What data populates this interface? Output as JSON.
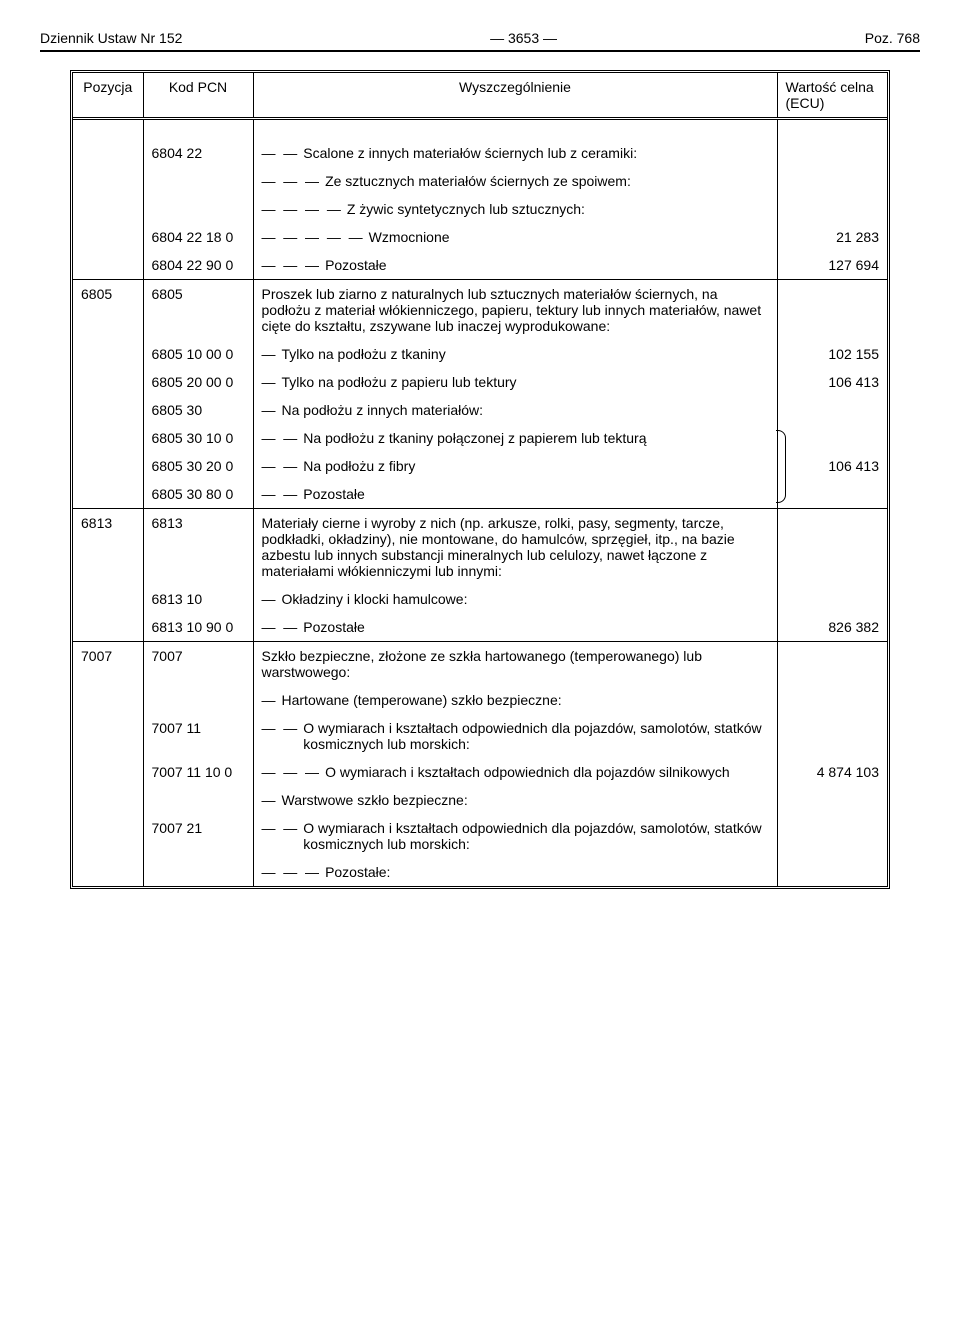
{
  "header": {
    "left": "Dziennik Ustaw Nr 152",
    "center": "—    3653    —",
    "right": "Poz. 768"
  },
  "columns": {
    "c1": "Pozycja",
    "c2": "Kod PCN",
    "c3": "Wyszczególnienie",
    "c4": "Wartość celna (ECU)"
  },
  "rows": [
    {
      "type": "spacer"
    },
    {
      "c2": "6804 22",
      "dash": "—  —",
      "text": "Scalone z innych materiałów ściernych lub z ceramiki:"
    },
    {
      "dash": "—  —  —",
      "text": "Ze sztucznych materiałów ściernych ze spoiwem:"
    },
    {
      "dash": "—  —  —  —",
      "text": "Z żywic syntetycznych lub sztucznych:"
    },
    {
      "c2": "6804 22 18 0",
      "dash": "—  —  —  —  —",
      "text": "Wzmocnione",
      "c4": "21 283"
    },
    {
      "c2": "6804 22 90 0",
      "dash": "—  —  —",
      "text": "Pozostałe",
      "c4": "127 694"
    },
    {
      "sep": true,
      "c1": "6805",
      "c2": "6805",
      "text": "Proszek lub ziarno z naturalnych lub sztucznych materiałów ściernych, na podłożu z materiał włókienniczego, papieru, tektury lub innych materiałów, nawet cięte do kształtu, zszywane lub inaczej wyprodukowane:"
    },
    {
      "c2": "6805 10 00 0",
      "dash": "—",
      "text": "Tylko na podłożu z tkaniny",
      "c4": "102 155"
    },
    {
      "c2": "6805 20 00 0",
      "dash": "—",
      "text": "Tylko na podłożu z papieru lub tektury",
      "c4": "106 413"
    },
    {
      "c2": "6805 30",
      "dash": "—",
      "text": "Na podłożu z innych materiałów:"
    },
    {
      "c2": "6805 30 10 0",
      "dash": "—  —",
      "text": "Na podłożu z tkaniny połączonej z papierem lub tekturą",
      "bracket": "start"
    },
    {
      "c2": "6805 30 20 0",
      "dash": "—  —",
      "text": "Na podłożu z fibry",
      "c4": "106 413",
      "bracket": "mid"
    },
    {
      "c2": "6805 30 80 0",
      "dash": "—  —",
      "text": "Pozostałe",
      "bracket": "end"
    },
    {
      "sep": true,
      "c1": "6813",
      "c2": "6813",
      "text": "Materiały cierne i wyroby z nich (np. arkusze, rolki, pasy, segmenty, tarcze, podkładki, okładziny), nie montowane, do hamulców, sprzęgieł, itp., na bazie azbestu lub innych substancji mineralnych lub celulozy, nawet łączone z materiałami włókienniczymi lub innymi:"
    },
    {
      "c2": "6813 10",
      "dash": "—",
      "text": "Okładziny i klocki hamulcowe:"
    },
    {
      "c2": "6813 10 90 0",
      "dash": "—  —",
      "text": "Pozostałe",
      "c4": "826 382"
    },
    {
      "sep": true,
      "c1": "7007",
      "c2": "7007",
      "text": "Szkło bezpieczne, złożone ze szkła hartowanego (temperowanego) lub warstwowego:"
    },
    {
      "dash": "—",
      "text": "Hartowane (temperowane) szkło bezpieczne:"
    },
    {
      "c2": "7007 11",
      "dash": "—  —",
      "text": "O wymiarach i kształtach odpowiednich dla pojazdów, samolotów, statków kosmicznych lub morskich:"
    },
    {
      "c2": "7007 11 10 0",
      "dash": "—  —  —",
      "text": "O wymiarach i kształtach odpowiednich dla pojazdów silnikowych",
      "c4": "4 874 103"
    },
    {
      "dash": "—",
      "text": "Warstwowe szkło bezpieczne:"
    },
    {
      "c2": "7007 21",
      "dash": "—  —",
      "text": "O wymiarach i kształtach odpowiednich dla pojazdów, samolotów, statków kosmicznych lub morskich:"
    },
    {
      "dash": "—  —  —",
      "text": "Pozostałe:"
    }
  ]
}
